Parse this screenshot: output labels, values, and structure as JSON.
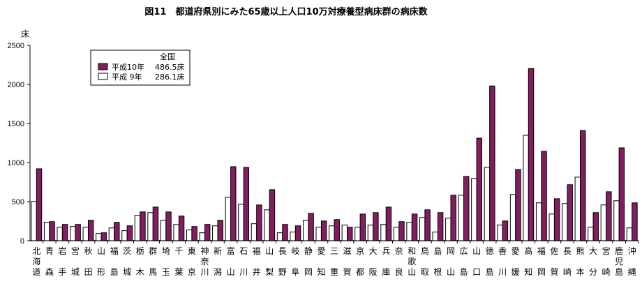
{
  "chart_data": {
    "type": "bar",
    "title": "図11　都道府県別にみた65歳以上人口10万対療養型病床群の病床数",
    "ylabel": "床",
    "ylim": [
      0,
      2500
    ],
    "yticks": [
      "0",
      "500",
      "1000",
      "1500",
      "2000",
      "2500"
    ],
    "grid": false,
    "legend_position": "top-left",
    "legend_title": "全国",
    "categories": [
      "北海道",
      "青森",
      "岩手",
      "宮城",
      "秋田",
      "山形",
      "福島",
      "茨城",
      "栃木",
      "群馬",
      "埼玉",
      "千葉",
      "東京",
      "神奈川",
      "新潟",
      "富山",
      "石川",
      "福井",
      "山梨",
      "長野",
      "岐阜",
      "静岡",
      "愛知",
      "三重",
      "滋賀",
      "京都",
      "大阪",
      "兵庫",
      "奈良",
      "和歌山",
      "鳥取",
      "島根",
      "岡山",
      "広島",
      "山口",
      "徳島",
      "香川",
      "愛媛",
      "高知",
      "福岡",
      "佐賀",
      "長崎",
      "熊本",
      "大分",
      "宮崎",
      "鹿児島",
      "沖縄"
    ],
    "series": [
      {
        "name": "平成 9年",
        "legend_value": "286.1床",
        "color": "#ffffff",
        "values": [
          502,
          235,
          172,
          181,
          172,
          92,
          163,
          128,
          324,
          359,
          261,
          208,
          137,
          101,
          190,
          555,
          466,
          217,
          395,
          101,
          110,
          261,
          172,
          190,
          199,
          172,
          199,
          208,
          172,
          235,
          297,
          110,
          288,
          582,
          796,
          938,
          199,
          591,
          1348,
          484,
          341,
          475,
          813,
          172,
          457,
          511,
          163
        ]
      },
      {
        "name": "平成10年",
        "legend_value": "486.5床",
        "color": "#821E5E",
        "values": [
          920,
          243,
          208,
          208,
          261,
          101,
          235,
          190,
          368,
          430,
          368,
          315,
          181,
          208,
          261,
          947,
          938,
          457,
          653,
          208,
          190,
          350,
          252,
          270,
          172,
          341,
          359,
          430,
          243,
          341,
          395,
          359,
          582,
          822,
          1312,
          1980,
          252,
          911,
          2203,
          1143,
          537,
          716,
          1410,
          359,
          626,
          1188,
          484
        ]
      }
    ]
  }
}
